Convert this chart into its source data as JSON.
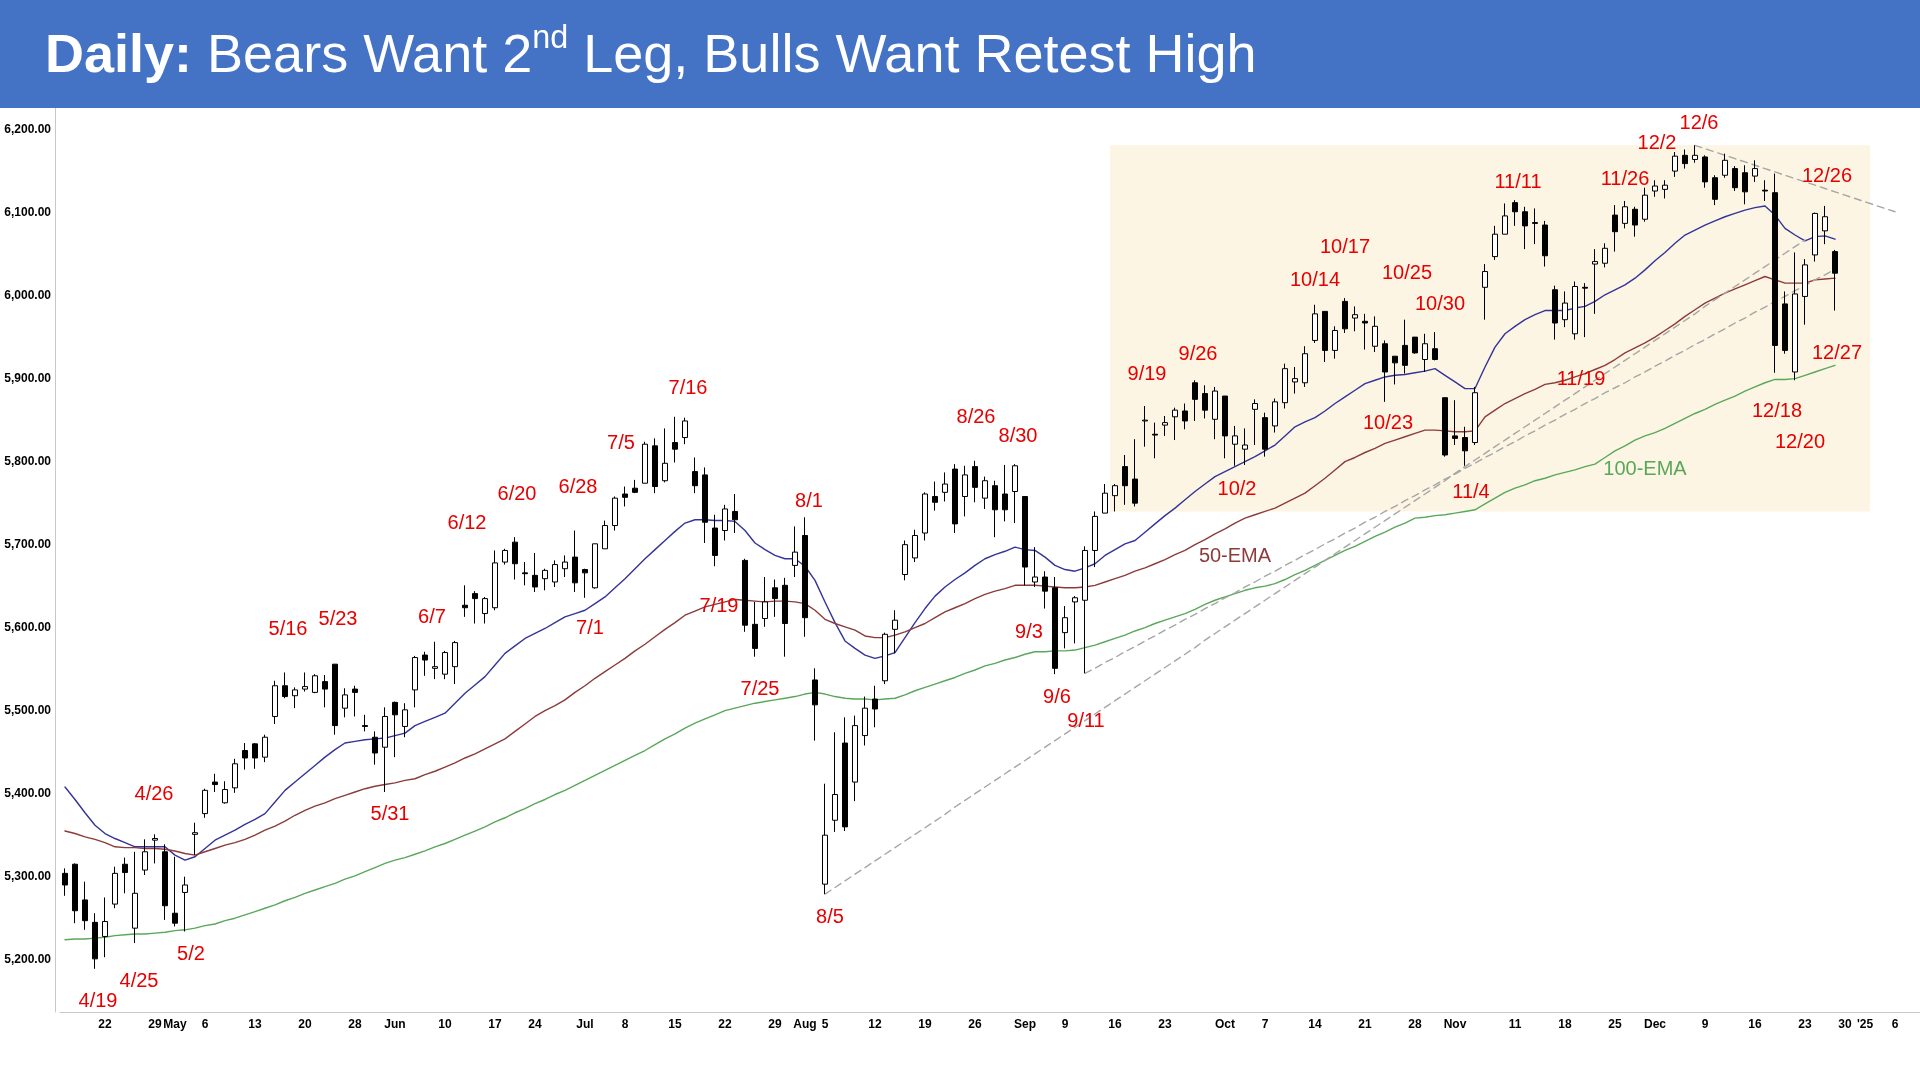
{
  "chart_data": {
    "type": "candlestick",
    "title": "Daily: Bears Want 2$^{nd}$ Leg, Bulls Want Retest High",
    "marker": "none",
    "categories": [
      null,
      null,
      null,
      null,
      "22",
      null,
      null,
      null,
      null,
      "29",
      null,
      "May",
      null,
      null,
      "6",
      null,
      null,
      null,
      null,
      "13",
      null,
      null,
      null,
      null,
      "20",
      null,
      null,
      null,
      null,
      "28",
      null,
      null,
      null,
      "Jun",
      null,
      null,
      null,
      null,
      "10",
      null,
      null,
      null,
      null,
      "17",
      null,
      null,
      null,
      "24",
      null,
      null,
      null,
      null,
      "Jul",
      null,
      null,
      null,
      "8",
      null,
      null,
      null,
      null,
      "15",
      null,
      null,
      null,
      null,
      "22",
      null,
      null,
      null,
      null,
      "29",
      null,
      null,
      "Aug",
      null,
      "5",
      null,
      null,
      null,
      null,
      "12",
      null,
      null,
      null,
      null,
      "19",
      null,
      null,
      null,
      null,
      "26",
      null,
      null,
      null,
      null,
      "Sep",
      null,
      null,
      null,
      "9",
      null,
      null,
      null,
      null,
      "16",
      null,
      null,
      null,
      null,
      "23",
      null,
      null,
      null,
      null,
      null,
      "Oct",
      null,
      null,
      null,
      "7",
      null,
      null,
      null,
      null,
      "14",
      null,
      null,
      null,
      null,
      "21",
      null,
      null,
      null,
      null,
      "28",
      null,
      null,
      null,
      "Nov",
      null,
      null,
      null,
      null,
      null,
      "11",
      null,
      null,
      null,
      null,
      "18",
      null,
      null,
      null,
      null,
      "25",
      null,
      null,
      null,
      "Dec",
      null,
      null,
      null,
      null,
      "9",
      null,
      null,
      null,
      null,
      "16",
      null,
      null,
      null,
      null,
      "23",
      null,
      null,
      null,
      "30",
      null,
      "'25",
      null,
      null,
      "6",
      null,
      null
    ],
    "ohlc": [
      [
        5303,
        5309,
        5276,
        5289
      ],
      [
        5314,
        5315,
        5243,
        5258
      ],
      [
        5271,
        5293,
        5235,
        5246
      ],
      [
        5244,
        5255,
        5188,
        5200
      ],
      [
        5227,
        5274,
        5202,
        5245
      ],
      [
        5266,
        5311,
        5261,
        5303
      ],
      [
        5314,
        5322,
        5279,
        5304
      ],
      [
        5237,
        5329,
        5219,
        5279
      ],
      [
        5307,
        5344,
        5301,
        5329
      ],
      [
        5343,
        5350,
        5315,
        5345
      ],
      [
        5329,
        5338,
        5247,
        5264
      ],
      [
        5255,
        5323,
        5239,
        5243
      ],
      [
        5280,
        5299,
        5233,
        5289
      ],
      [
        5350,
        5364,
        5325,
        5352
      ],
      [
        5375,
        5405,
        5370,
        5403
      ],
      [
        5413,
        5423,
        5401,
        5410
      ],
      [
        5388,
        5414,
        5387,
        5404
      ],
      [
        5406,
        5441,
        5400,
        5435
      ],
      [
        5451,
        5460,
        5428,
        5442
      ],
      [
        5459,
        5460,
        5429,
        5442
      ],
      [
        5443,
        5470,
        5437,
        5467
      ],
      [
        5492,
        5535,
        5483,
        5529
      ],
      [
        5529,
        5545,
        5514,
        5516
      ],
      [
        5517,
        5527,
        5502,
        5524
      ],
      [
        5525,
        5545,
        5522,
        5528
      ],
      [
        5521,
        5543,
        5520,
        5541
      ],
      [
        5534,
        5542,
        5503,
        5525
      ],
      [
        5555,
        5555,
        5470,
        5481
      ],
      [
        5502,
        5526,
        5491,
        5518
      ],
      [
        5525,
        5529,
        5492,
        5521
      ],
      [
        5481,
        5494,
        5474,
        5480
      ],
      [
        5467,
        5474,
        5434,
        5448
      ],
      [
        5455,
        5503,
        5401,
        5492
      ],
      [
        5509,
        5510,
        5443,
        5494
      ],
      [
        5480,
        5508,
        5467,
        5500
      ],
      [
        5524,
        5565,
        5503,
        5563
      ],
      [
        5566,
        5570,
        5541,
        5560
      ],
      [
        5550,
        5582,
        5537,
        5552
      ],
      [
        5543,
        5571,
        5537,
        5569
      ],
      [
        5552,
        5583,
        5531,
        5581
      ],
      [
        5626,
        5650,
        5612,
        5623
      ],
      [
        5640,
        5643,
        5604,
        5634
      ],
      [
        5616,
        5636,
        5604,
        5634
      ],
      [
        5623,
        5692,
        5620,
        5677
      ],
      [
        5678,
        5694,
        5675,
        5692
      ],
      [
        5702,
        5708,
        5657,
        5676
      ],
      [
        5665,
        5678,
        5650,
        5664
      ],
      [
        5662,
        5689,
        5642,
        5648
      ],
      [
        5658,
        5670,
        5644,
        5668
      ],
      [
        5654,
        5680,
        5648,
        5675
      ],
      [
        5670,
        5686,
        5660,
        5678
      ],
      [
        5684,
        5716,
        5642,
        5653
      ],
      [
        5669,
        5670,
        5635,
        5665
      ],
      [
        5647,
        5700,
        5646,
        5700
      ],
      [
        5694,
        5728,
        5694,
        5722
      ],
      [
        5722,
        5757,
        5716,
        5755
      ],
      [
        5760,
        5769,
        5745,
        5756
      ],
      [
        5767,
        5777,
        5761,
        5762
      ],
      [
        5773,
        5823,
        5773,
        5820
      ],
      [
        5818,
        5827,
        5761,
        5769
      ],
      [
        5776,
        5839,
        5774,
        5797
      ],
      [
        5822,
        5853,
        5798,
        5814
      ],
      [
        5828,
        5852,
        5820,
        5848
      ],
      [
        5787,
        5804,
        5761,
        5770
      ],
      [
        5783,
        5792,
        5701,
        5726
      ],
      [
        5719,
        5735,
        5673,
        5686
      ],
      [
        5716,
        5747,
        5704,
        5742
      ],
      [
        5739,
        5760,
        5713,
        5729
      ],
      [
        5680,
        5682,
        5594,
        5602
      ],
      [
        5603,
        5630,
        5564,
        5574
      ],
      [
        5610,
        5660,
        5600,
        5630
      ],
      [
        5647,
        5657,
        5612,
        5634
      ],
      [
        5650,
        5659,
        5564,
        5604
      ],
      [
        5674,
        5721,
        5660,
        5690
      ],
      [
        5710,
        5732,
        5588,
        5611
      ],
      [
        5536,
        5550,
        5463,
        5506
      ],
      [
        5290,
        5411,
        5278,
        5349
      ],
      [
        5367,
        5473,
        5353,
        5398
      ],
      [
        5460,
        5491,
        5354,
        5359
      ],
      [
        5413,
        5493,
        5390,
        5481
      ],
      [
        5469,
        5516,
        5457,
        5502
      ],
      [
        5513,
        5529,
        5479,
        5501
      ],
      [
        5535,
        5593,
        5531,
        5591
      ],
      [
        5597,
        5620,
        5568,
        5608
      ],
      [
        5663,
        5704,
        5656,
        5699
      ],
      [
        5683,
        5717,
        5678,
        5710
      ],
      [
        5713,
        5762,
        5704,
        5760
      ],
      [
        5757,
        5775,
        5740,
        5750
      ],
      [
        5762,
        5786,
        5751,
        5772
      ],
      [
        5790,
        5796,
        5713,
        5724
      ],
      [
        5757,
        5794,
        5733,
        5783
      ],
      [
        5793,
        5800,
        5750,
        5768
      ],
      [
        5755,
        5781,
        5742,
        5776
      ],
      [
        5770,
        5776,
        5708,
        5741
      ],
      [
        5760,
        5795,
        5727,
        5741
      ],
      [
        5763,
        5796,
        5725,
        5794
      ],
      [
        5757,
        5757,
        5650,
        5672
      ],
      [
        5654,
        5696,
        5648,
        5660
      ],
      [
        5660,
        5667,
        5622,
        5643
      ],
      [
        5647,
        5660,
        5543,
        5550
      ],
      [
        5593,
        5625,
        5574,
        5611
      ],
      [
        5630,
        5637,
        5580,
        5635
      ],
      [
        5632,
        5697,
        5544,
        5692
      ],
      [
        5692,
        5739,
        5672,
        5733
      ],
      [
        5737,
        5772,
        5737,
        5761
      ],
      [
        5758,
        5772,
        5739,
        5770
      ],
      [
        5793,
        5807,
        5747,
        5770
      ],
      [
        5778,
        5826,
        5745,
        5749
      ],
      [
        5848,
        5866,
        5817,
        5849
      ],
      [
        5832,
        5846,
        5803,
        5831
      ],
      [
        5843,
        5854,
        5830,
        5846
      ],
      [
        5853,
        5864,
        5825,
        5861
      ],
      [
        5860,
        5869,
        5838,
        5848
      ],
      [
        5894,
        5897,
        5848,
        5874
      ],
      [
        5881,
        5891,
        5851,
        5861
      ],
      [
        5850,
        5889,
        5826,
        5884
      ],
      [
        5878,
        5878,
        5803,
        5830
      ],
      [
        5820,
        5842,
        5794,
        5830
      ],
      [
        5814,
        5839,
        5795,
        5819
      ],
      [
        5862,
        5874,
        5819,
        5869
      ],
      [
        5852,
        5858,
        5805,
        5814
      ],
      [
        5842,
        5875,
        5834,
        5871
      ],
      [
        5870,
        5917,
        5863,
        5911
      ],
      [
        5895,
        5913,
        5881,
        5899
      ],
      [
        5894,
        5938,
        5889,
        5929
      ],
      [
        5945,
        5988,
        5942,
        5977
      ],
      [
        5980,
        5980,
        5919,
        5933
      ],
      [
        5933,
        5962,
        5923,
        5957
      ],
      [
        5992,
        5996,
        5954,
        5959
      ],
      [
        5972,
        5986,
        5956,
        5976
      ],
      [
        5968,
        5977,
        5934,
        5966
      ],
      [
        5938,
        5974,
        5931,
        5962
      ],
      [
        5941,
        5945,
        5871,
        5907
      ],
      [
        5926,
        5926,
        5892,
        5918
      ],
      [
        5939,
        5970,
        5905,
        5915
      ],
      [
        5949,
        5949,
        5929,
        5930
      ],
      [
        5922,
        5953,
        5907,
        5941
      ],
      [
        5935,
        5955,
        5921,
        5922
      ],
      [
        5876,
        5876,
        5805,
        5807
      ],
      [
        5830,
        5873,
        5819,
        5827
      ],
      [
        5828,
        5841,
        5794,
        5812
      ],
      [
        5822,
        5889,
        5819,
        5882
      ],
      [
        6009,
        6037,
        5970,
        6028
      ],
      [
        6046,
        6083,
        6042,
        6073
      ],
      [
        6073,
        6110,
        6073,
        6095
      ],
      [
        6111,
        6114,
        6083,
        6100
      ],
      [
        6100,
        6106,
        6055,
        6083
      ],
      [
        6087,
        6104,
        6061,
        6086
      ],
      [
        6084,
        6089,
        6034,
        6047
      ],
      [
        6006,
        6011,
        5946,
        5966
      ],
      [
        5970,
        6004,
        5961,
        5990
      ],
      [
        5953,
        6016,
        5946,
        6010
      ],
      [
        6009,
        6014,
        5949,
        6008
      ],
      [
        6037,
        6055,
        5977,
        6040
      ],
      [
        6038,
        6062,
        6033,
        6056
      ],
      [
        6096,
        6108,
        6052,
        6076
      ],
      [
        6086,
        6113,
        6080,
        6106
      ],
      [
        6103,
        6106,
        6070,
        6084
      ],
      [
        6091,
        6129,
        6088,
        6120
      ],
      [
        6125,
        6138,
        6118,
        6131
      ],
      [
        6127,
        6138,
        6116,
        6132
      ],
      [
        6149,
        6172,
        6142,
        6167
      ],
      [
        6168,
        6175,
        6152,
        6158
      ],
      [
        6163,
        6180,
        6159,
        6168
      ],
      [
        6166,
        6168,
        6129,
        6136
      ],
      [
        6141,
        6144,
        6108,
        6115
      ],
      [
        6144,
        6170,
        6141,
        6162
      ],
      [
        6152,
        6155,
        6125,
        6129
      ],
      [
        6147,
        6156,
        6109,
        6124
      ],
      [
        6143,
        6162,
        6136,
        6152
      ],
      [
        6126,
        6138,
        6113,
        6125
      ],
      [
        6123,
        6146,
        5906,
        5939
      ],
      [
        5989,
        6004,
        5929,
        5933
      ],
      [
        5907,
        6051,
        5897,
        6001
      ],
      [
        5998,
        6043,
        5964,
        6036
      ],
      [
        6048,
        6099,
        6040,
        6098
      ],
      [
        6077,
        6107,
        6061,
        6094
      ],
      [
        6052,
        6054,
        5981,
        6026
      ],
      null,
      null,
      null,
      null,
      null,
      null,
      null,
      null
    ],
    "series": [
      {
        "type": "line",
        "color": "#333399",
        "values": [
          5407,
          5392,
          5376,
          5361,
          5351,
          5345,
          5340,
          5335,
          5335,
          5335,
          5335,
          5325,
          5319,
          5323,
          5333,
          5343,
          5349,
          5355,
          5362,
          5368,
          5375,
          5389,
          5403,
          5413,
          5423,
          5433,
          5443,
          5452,
          5460,
          5462,
          5464,
          5465,
          5466,
          5469,
          5472,
          5481,
          5486,
          5491,
          5496,
          5508,
          5520,
          5530,
          5540,
          5554,
          5568,
          5577,
          5586,
          5592,
          5598,
          5605,
          5612,
          5616,
          5620,
          5628,
          5636,
          5647,
          5658,
          5670,
          5682,
          5693,
          5704,
          5715,
          5725,
          5729,
          5729,
          5728,
          5728,
          5727,
          5716,
          5701,
          5693,
          5686,
          5682,
          5682,
          5673,
          5656,
          5630,
          5605,
          5583,
          5574,
          5566,
          5562,
          5565,
          5569,
          5587,
          5605,
          5622,
          5637,
          5648,
          5657,
          5665,
          5674,
          5682,
          5687,
          5691,
          5696,
          5693,
          5692,
          5684,
          5674,
          5669,
          5667,
          5671,
          5676,
          5686,
          5693,
          5700,
          5704,
          5714,
          5724,
          5734,
          5743,
          5753,
          5763,
          5772,
          5781,
          5787,
          5793,
          5799,
          5805,
          5812,
          5819,
          5830,
          5841,
          5847,
          5852,
          5860,
          5869,
          5877,
          5885,
          5893,
          5897,
          5901,
          5903,
          5904,
          5906,
          5908,
          5911,
          5903,
          5895,
          5887,
          5887,
          5913,
          5937,
          5953,
          5962,
          5970,
          5976,
          5981,
          5981,
          5981,
          5984,
          5986,
          5992,
          6000,
          6006,
          6012,
          6020,
          6030,
          6041,
          6051,
          6062,
          6072,
          6078,
          6084,
          6089,
          6094,
          6098,
          6102,
          6105,
          6107,
          6096,
          6080,
          6072,
          6065,
          6070,
          6071,
          6067,
          null,
          null,
          null,
          null,
          null,
          null,
          null,
          null
        ]
      },
      {
        "type": "line",
        "name": "50-EMA",
        "color": "#8c3b3b",
        "values": [
          5354,
          5351,
          5347,
          5344,
          5340,
          5335,
          5334,
          5334,
          5333,
          5333,
          5332,
          5330,
          5327,
          5325,
          5329,
          5333,
          5337,
          5340,
          5344,
          5349,
          5355,
          5360,
          5366,
          5373,
          5379,
          5384,
          5388,
          5393,
          5397,
          5401,
          5405,
          5408,
          5410,
          5412,
          5415,
          5417,
          5422,
          5426,
          5431,
          5436,
          5442,
          5447,
          5453,
          5459,
          5465,
          5474,
          5483,
          5492,
          5499,
          5505,
          5512,
          5521,
          5529,
          5538,
          5546,
          5554,
          5562,
          5571,
          5579,
          5588,
          5597,
          5605,
          5614,
          5619,
          5624,
          5627,
          5630,
          5633,
          5632,
          5631,
          5630,
          5631,
          5631,
          5630,
          5628,
          5620,
          5609,
          5604,
          5600,
          5596,
          5589,
          5587,
          5587,
          5590,
          5594,
          5599,
          5604,
          5611,
          5618,
          5623,
          5628,
          5634,
          5639,
          5643,
          5646,
          5650,
          5650,
          5650,
          5649,
          5648,
          5647,
          5647,
          5648,
          5650,
          5654,
          5658,
          5662,
          5667,
          5671,
          5676,
          5681,
          5687,
          5692,
          5699,
          5705,
          5712,
          5718,
          5725,
          5731,
          5735,
          5739,
          5743,
          5749,
          5755,
          5761,
          5770,
          5779,
          5789,
          5799,
          5804,
          5810,
          5815,
          5821,
          5825,
          5829,
          5833,
          5837,
          5837,
          5836,
          5835,
          5835,
          5836,
          5853,
          5861,
          5869,
          5875,
          5881,
          5886,
          5892,
          5894,
          5897,
          5901,
          5905,
          5910,
          5915,
          5922,
          5930,
          5936,
          5942,
          5949,
          5957,
          5965,
          5974,
          5982,
          5990,
          5996,
          6002,
          6007,
          6012,
          6017,
          6022,
          6018,
          6014,
          6014,
          6014,
          6018,
          6019,
          6020,
          null,
          null,
          null,
          null,
          null,
          null,
          null,
          null
        ]
      },
      {
        "type": "line",
        "name": "100-EMA",
        "color": "#59a85a",
        "values": [
          5223,
          5224,
          5224,
          5225,
          5226,
          5228,
          5229,
          5230,
          5230,
          5231,
          5232,
          5234,
          5235,
          5237,
          5240,
          5242,
          5246,
          5249,
          5253,
          5257,
          5261,
          5265,
          5270,
          5274,
          5279,
          5283,
          5287,
          5291,
          5296,
          5300,
          5305,
          5310,
          5315,
          5319,
          5322,
          5326,
          5330,
          5335,
          5339,
          5344,
          5349,
          5354,
          5359,
          5365,
          5370,
          5376,
          5381,
          5387,
          5392,
          5398,
          5403,
          5409,
          5415,
          5421,
          5427,
          5433,
          5439,
          5445,
          5451,
          5458,
          5465,
          5471,
          5478,
          5484,
          5489,
          5494,
          5499,
          5502,
          5505,
          5508,
          5510,
          5512,
          5514,
          5516,
          5519,
          5521,
          5519,
          5516,
          5514,
          5513,
          5513,
          5512,
          5513,
          5514,
          5518,
          5523,
          5527,
          5531,
          5535,
          5539,
          5544,
          5548,
          5553,
          5556,
          5560,
          5563,
          5567,
          5570,
          5570,
          5571,
          5571,
          5572,
          5575,
          5578,
          5582,
          5586,
          5590,
          5595,
          5599,
          5604,
          5608,
          5612,
          5616,
          5621,
          5627,
          5632,
          5636,
          5640,
          5644,
          5647,
          5649,
          5652,
          5657,
          5663,
          5668,
          5674,
          5680,
          5686,
          5692,
          5697,
          5703,
          5709,
          5714,
          5720,
          5725,
          5731,
          5732,
          5734,
          5735,
          5737,
          5739,
          5741,
          5748,
          5755,
          5762,
          5767,
          5771,
          5776,
          5779,
          5783,
          5786,
          5789,
          5793,
          5796,
          5804,
          5812,
          5818,
          5825,
          5830,
          5834,
          5839,
          5845,
          5851,
          5857,
          5862,
          5868,
          5873,
          5878,
          5884,
          5889,
          5894,
          5898,
          5898,
          5899,
          5903,
          5907,
          5911,
          5915,
          null,
          null,
          null,
          null,
          null,
          null,
          null,
          null
        ]
      },
      {
        "type": "line",
        "color": "#a6a6a6",
        "line_style": "dashed",
        "values": [
          null,
          null,
          null,
          null,
          null,
          null,
          null,
          null,
          null,
          null,
          null,
          null,
          null,
          null,
          null,
          null,
          null,
          null,
          null,
          null,
          null,
          null,
          null,
          null,
          null,
          null,
          null,
          null,
          null,
          null,
          null,
          null,
          null,
          null,
          null,
          null,
          null,
          null,
          null,
          null,
          null,
          null,
          null,
          null,
          null,
          null,
          null,
          null,
          null,
          null,
          null,
          null,
          null,
          null,
          null,
          null,
          null,
          null,
          null,
          null,
          null,
          null,
          null,
          null,
          null,
          null,
          null,
          null,
          null,
          null,
          null,
          null,
          null,
          null,
          null,
          null,
          5278,
          5286,
          5294,
          5302,
          5310,
          5318,
          5326,
          5334,
          5342,
          5350,
          5358,
          5366,
          5374,
          5383,
          5391,
          5399,
          5407,
          5415,
          5423,
          5431,
          5439,
          5447,
          5455,
          5463,
          5471,
          5479,
          5487,
          5495,
          5503,
          5511,
          5519,
          5527,
          5535,
          5543,
          5551,
          5559,
          5567,
          5575,
          5584,
          5592,
          5600,
          5608,
          5616,
          5624,
          5632,
          5640,
          5648,
          5656,
          5664,
          5672,
          5680,
          5688,
          5696,
          5704,
          5712,
          5720,
          5728,
          5736,
          5744,
          5752,
          5760,
          5768,
          5776,
          5785,
          5793,
          5801,
          5809,
          5817,
          5825,
          5833,
          5841,
          5849,
          5857,
          5865,
          5873,
          5881,
          5889,
          5897,
          5905,
          5913,
          5921,
          5929,
          5937,
          5945,
          5953,
          5961,
          5969,
          5977,
          5986,
          5994,
          6002,
          6010,
          6018,
          6026,
          6034,
          6042,
          6050,
          6058,
          6066,
          null,
          null,
          null,
          null,
          null,
          null,
          null,
          null,
          null,
          null,
          null
        ]
      },
      {
        "type": "line",
        "color": "#a6a6a6",
        "line_style": "dashed",
        "values": [
          null,
          null,
          null,
          null,
          null,
          null,
          null,
          null,
          null,
          null,
          null,
          null,
          null,
          null,
          null,
          null,
          null,
          null,
          null,
          null,
          null,
          null,
          null,
          null,
          null,
          null,
          null,
          null,
          null,
          null,
          null,
          null,
          null,
          null,
          null,
          null,
          null,
          null,
          null,
          null,
          null,
          null,
          null,
          null,
          null,
          null,
          null,
          null,
          null,
          null,
          null,
          null,
          null,
          null,
          null,
          null,
          null,
          null,
          null,
          null,
          null,
          null,
          null,
          null,
          null,
          null,
          null,
          null,
          null,
          null,
          null,
          null,
          null,
          null,
          null,
          null,
          null,
          null,
          null,
          null,
          null,
          null,
          null,
          null,
          null,
          null,
          null,
          null,
          null,
          null,
          null,
          null,
          null,
          null,
          null,
          null,
          null,
          null,
          null,
          null,
          null,
          null,
          5544,
          5550,
          5557,
          5563,
          5570,
          5576,
          5583,
          5589,
          5596,
          5602,
          5609,
          5615,
          5622,
          5628,
          5635,
          5641,
          5648,
          5654,
          5661,
          5667,
          5674,
          5680,
          5687,
          5693,
          5700,
          5706,
          5713,
          5719,
          5726,
          5732,
          5739,
          5745,
          5752,
          5758,
          5765,
          5771,
          5778,
          5784,
          5791,
          5797,
          5804,
          5810,
          5817,
          5823,
          5830,
          5836,
          5843,
          5849,
          5856,
          5862,
          5869,
          5875,
          5882,
          5888,
          5894,
          5901,
          5907,
          5914,
          5920,
          5927,
          5933,
          5940,
          5946,
          5953,
          5959,
          5966,
          5972,
          5979,
          5985,
          5992,
          5998,
          6005,
          6011,
          6018,
          6024,
          6031,
          null,
          null,
          null,
          null,
          null,
          null,
          null,
          null
        ]
      },
      {
        "type": "line",
        "color": "#a6a6a6",
        "line_style": "dashed",
        "values": [
          null,
          null,
          null,
          null,
          null,
          null,
          null,
          null,
          null,
          null,
          null,
          null,
          null,
          null,
          null,
          null,
          null,
          null,
          null,
          null,
          null,
          null,
          null,
          null,
          null,
          null,
          null,
          null,
          null,
          null,
          null,
          null,
          null,
          null,
          null,
          null,
          null,
          null,
          null,
          null,
          null,
          null,
          null,
          null,
          null,
          null,
          null,
          null,
          null,
          null,
          null,
          null,
          null,
          null,
          null,
          null,
          null,
          null,
          null,
          null,
          null,
          null,
          null,
          null,
          null,
          null,
          null,
          null,
          null,
          null,
          null,
          null,
          null,
          null,
          null,
          null,
          null,
          null,
          null,
          null,
          null,
          null,
          null,
          null,
          null,
          null,
          null,
          null,
          null,
          null,
          null,
          null,
          null,
          null,
          null,
          null,
          null,
          null,
          null,
          null,
          null,
          null,
          null,
          null,
          null,
          null,
          null,
          null,
          null,
          null,
          null,
          null,
          null,
          null,
          null,
          null,
          null,
          null,
          null,
          null,
          null,
          null,
          null,
          null,
          null,
          null,
          null,
          null,
          null,
          null,
          null,
          null,
          null,
          null,
          null,
          null,
          null,
          null,
          null,
          null,
          null,
          null,
          null,
          null,
          null,
          null,
          null,
          null,
          null,
          null,
          null,
          null,
          null,
          null,
          null,
          null,
          null,
          null,
          null,
          null,
          null,
          null,
          null,
          6180,
          6176,
          6172,
          6168,
          6164,
          6160,
          6156,
          6152,
          6148,
          6144,
          6140,
          6136,
          6132,
          6128,
          6124,
          6120,
          6116,
          6112,
          6108,
          6104,
          6100,
          null,
          null
        ]
      }
    ],
    "bands": [
      {
        "axis": "x",
        "from": "16",
        "to": "'25",
        "color": "#fdf5e3"
      }
    ],
    "ylim": [
      5136,
      6225
    ],
    "yticks": [
      {
        "value": 5200,
        "label": "5,200.00"
      },
      {
        "value": 5300,
        "label": "5,300.00"
      },
      {
        "value": 5400,
        "label": "5,400.00"
      },
      {
        "value": 5500,
        "label": "5,500.00"
      },
      {
        "value": 5600,
        "label": "5,600.00"
      },
      {
        "value": 5700,
        "label": "5,700.00"
      },
      {
        "value": 5800,
        "label": "5,800.00"
      },
      {
        "value": 5900,
        "label": "5,900.00"
      },
      {
        "value": 6000,
        "label": "6,000.00"
      },
      {
        "value": 6100,
        "label": "6,100.00"
      },
      {
        "value": 6200,
        "label": "6,200.00"
      }
    ],
    "annotations": [
      "4/19",
      "4/25",
      "4/26",
      "5/2",
      "5/16",
      "5/23",
      "5/31",
      "6/7",
      "6/12",
      "6/20",
      "6/28",
      "7/1",
      "7/5",
      "7/16",
      "7/19",
      "7/25",
      "8/1",
      "8/5",
      "8/26",
      "8/30",
      "9/3",
      "9/6",
      "9/11",
      "9/19",
      "9/26",
      "10/2",
      "10/14",
      "10/17",
      "10/23",
      "10/25",
      "10/30",
      "11/4",
      "11/11",
      "11/19",
      "11/26",
      "12/2",
      "12/6",
      "12/18",
      "12/20",
      "12/26",
      "12/27"
    ]
  }
}
